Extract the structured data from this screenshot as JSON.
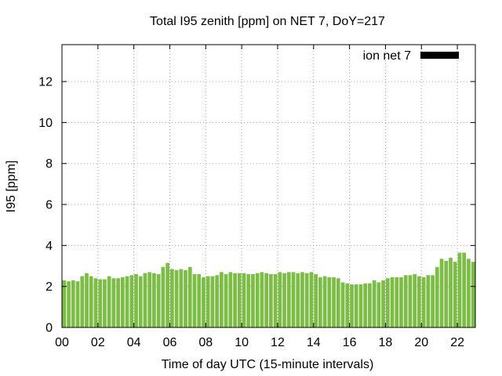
{
  "chart_data": {
    "type": "bar",
    "title": "Total I95 zenith [ppm] on NET 7, DoY=217",
    "xlabel": "Time of day UTC (15-minute intervals)",
    "ylabel": "I95 [ppm]",
    "xlim": [
      0,
      23
    ],
    "ylim": [
      0,
      13.8
    ],
    "x_ticks": [
      "00",
      "02",
      "04",
      "06",
      "08",
      "10",
      "12",
      "14",
      "16",
      "18",
      "20",
      "22"
    ],
    "y_ticks": [
      "0",
      "2",
      "4",
      "6",
      "8",
      "10",
      "12"
    ],
    "grid": true,
    "legend_position": "top-right",
    "bar_color": "#7cbd45",
    "legend_swatch_color": "#000000",
    "series": [
      {
        "name": "ion net 7",
        "interval_hours": 0.25,
        "values": [
          2.3,
          2.25,
          2.3,
          2.25,
          2.5,
          2.65,
          2.5,
          2.4,
          2.35,
          2.35,
          2.5,
          2.4,
          2.4,
          2.45,
          2.5,
          2.55,
          2.6,
          2.5,
          2.65,
          2.7,
          2.65,
          2.6,
          2.95,
          3.15,
          2.85,
          2.8,
          2.85,
          2.8,
          2.95,
          2.6,
          2.6,
          2.45,
          2.5,
          2.5,
          2.55,
          2.7,
          2.6,
          2.7,
          2.65,
          2.65,
          2.65,
          2.6,
          2.6,
          2.65,
          2.7,
          2.65,
          2.6,
          2.6,
          2.7,
          2.65,
          2.7,
          2.7,
          2.65,
          2.7,
          2.65,
          2.7,
          2.6,
          2.45,
          2.5,
          2.45,
          2.45,
          2.4,
          2.2,
          2.15,
          2.1,
          2.1,
          2.1,
          2.15,
          2.15,
          2.3,
          2.2,
          2.3,
          2.4,
          2.45,
          2.45,
          2.45,
          2.55,
          2.55,
          2.6,
          2.5,
          2.45,
          2.55,
          2.55,
          2.95,
          3.35,
          3.25,
          3.4,
          3.2,
          3.65,
          3.65,
          3.35,
          3.2
        ]
      }
    ]
  }
}
